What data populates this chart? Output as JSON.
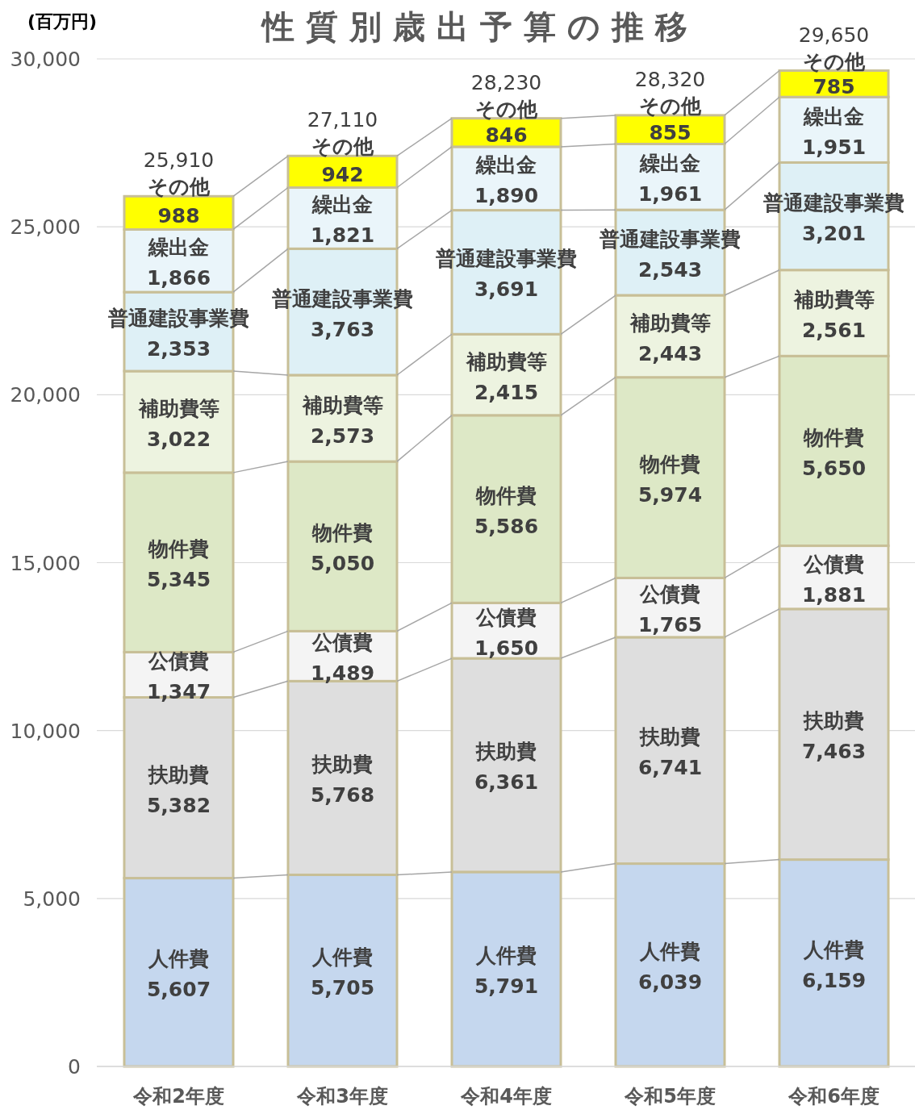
{
  "chart_data": {
    "type": "bar",
    "stacked": true,
    "title": "性質別歳出予算の推移",
    "ylabel": "(百万円)",
    "categories": [
      "令和2年度",
      "令和3年度",
      "令和4年度",
      "令和5年度",
      "令和6年度"
    ],
    "series": [
      {
        "name": "人件費",
        "color": "#c5d7ee",
        "values": [
          5607,
          5705,
          5791,
          6039,
          6159
        ],
        "value_labels": [
          "5,607",
          "5,705",
          "5,791",
          "6,039",
          "6,159"
        ]
      },
      {
        "name": "扶助費",
        "color": "#dedede",
        "values": [
          5382,
          5768,
          6361,
          6741,
          7463
        ],
        "value_labels": [
          "5,382",
          "5,768",
          "6,361",
          "6,741",
          "7,463"
        ]
      },
      {
        "name": "公債費",
        "color": "#f4f4f4",
        "values": [
          1347,
          1489,
          1650,
          1765,
          1881
        ],
        "value_labels": [
          "1,347",
          "1,489",
          "1,650",
          "1,765",
          "1,881"
        ]
      },
      {
        "name": "物件費",
        "color": "#dde8c6",
        "values": [
          5345,
          5050,
          5586,
          5974,
          5650
        ],
        "value_labels": [
          "5,345",
          "5,050",
          "5,586",
          "5,974",
          "5,650"
        ]
      },
      {
        "name": "補助費等",
        "color": "#edf3e0",
        "values": [
          3022,
          2573,
          2415,
          2443,
          2561
        ],
        "value_labels": [
          "3,022",
          "2,573",
          "2,415",
          "2,443",
          "2,561"
        ]
      },
      {
        "name": "普通建設事業費",
        "color": "#def0f6",
        "values": [
          2353,
          3763,
          3691,
          2543,
          3201
        ],
        "value_labels": [
          "2,353",
          "3,763",
          "3,691",
          "2,543",
          "3,201"
        ]
      },
      {
        "name": "繰出金",
        "color": "#eaf5fa",
        "values": [
          1866,
          1821,
          1890,
          1961,
          1951
        ],
        "value_labels": [
          "1,866",
          "1,821",
          "1,890",
          "1,961",
          "1,951"
        ]
      },
      {
        "name": "その他",
        "color": "#ffff00",
        "values": [
          988,
          942,
          846,
          855,
          785
        ],
        "value_labels": [
          "988",
          "942",
          "846",
          "855",
          "785"
        ]
      }
    ],
    "totals": [
      "25,910",
      "27,110",
      "28,230",
      "28,320",
      "29,650"
    ],
    "grid": "y",
    "ylim": [
      0,
      30000
    ],
    "yticks": [
      0,
      {
        "value": 5000,
        "label": "5,000"
      },
      {
        "value": 10000,
        "label": "10,000"
      },
      {
        "value": 15000,
        "label": "15,000"
      },
      {
        "value": 20000,
        "label": "20,000"
      },
      {
        "value": 25000,
        "label": "25,000"
      },
      {
        "value": 30000,
        "label": "30,000"
      }
    ]
  }
}
